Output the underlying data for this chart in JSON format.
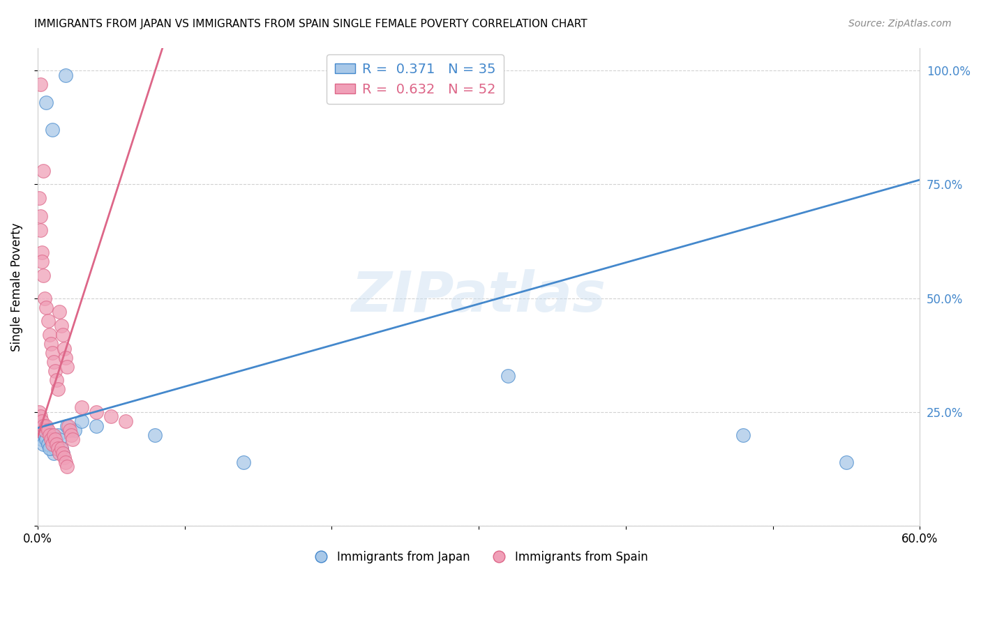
{
  "title": "IMMIGRANTS FROM JAPAN VS IMMIGRANTS FROM SPAIN SINGLE FEMALE POVERTY CORRELATION CHART",
  "source": "Source: ZipAtlas.com",
  "ylabel": "Single Female Poverty",
  "xlim": [
    0.0,
    0.6
  ],
  "ylim": [
    0.0,
    1.05
  ],
  "xtick_vals": [
    0.0,
    0.1,
    0.2,
    0.3,
    0.4,
    0.5,
    0.6
  ],
  "xticklabels": [
    "0.0%",
    "",
    "",
    "",
    "",
    "",
    "60.0%"
  ],
  "ytick_vals": [
    0.0,
    0.25,
    0.5,
    0.75,
    1.0
  ],
  "yticklabels": [
    "",
    "25.0%",
    "50.0%",
    "75.0%",
    "100.0%"
  ],
  "legend_japan": "R =  0.371   N = 35",
  "legend_spain": "R =  0.632   N = 52",
  "color_japan": "#a8c8e8",
  "color_spain": "#f0a0b8",
  "line_color_japan": "#4488cc",
  "line_color_spain": "#dd6688",
  "watermark": "ZIPatlas",
  "japan_line_x": [
    0.0,
    0.6
  ],
  "japan_line_y": [
    0.215,
    0.76
  ],
  "spain_line_x": [
    0.0,
    0.085
  ],
  "spain_line_y": [
    0.195,
    1.05
  ],
  "japan_scatter_x": [
    0.006,
    0.01,
    0.019,
    0.001,
    0.002,
    0.003,
    0.004,
    0.005,
    0.006,
    0.007,
    0.008,
    0.009,
    0.01,
    0.011,
    0.012,
    0.013,
    0.014,
    0.015,
    0.016,
    0.017,
    0.003,
    0.004,
    0.005,
    0.006,
    0.007,
    0.008,
    0.02,
    0.025,
    0.03,
    0.04,
    0.08,
    0.14,
    0.32,
    0.48,
    0.55
  ],
  "japan_scatter_y": [
    0.93,
    0.87,
    0.99,
    0.21,
    0.2,
    0.19,
    0.18,
    0.22,
    0.2,
    0.19,
    0.18,
    0.17,
    0.2,
    0.16,
    0.17,
    0.18,
    0.2,
    0.19,
    0.17,
    0.16,
    0.22,
    0.21,
    0.2,
    0.19,
    0.18,
    0.17,
    0.22,
    0.21,
    0.23,
    0.22,
    0.2,
    0.14,
    0.33,
    0.2,
    0.14
  ],
  "spain_scatter_x": [
    0.002,
    0.004,
    0.002,
    0.003,
    0.001,
    0.002,
    0.003,
    0.004,
    0.005,
    0.006,
    0.007,
    0.008,
    0.009,
    0.01,
    0.011,
    0.012,
    0.013,
    0.014,
    0.015,
    0.016,
    0.017,
    0.018,
    0.019,
    0.02,
    0.001,
    0.002,
    0.003,
    0.004,
    0.005,
    0.006,
    0.007,
    0.008,
    0.009,
    0.01,
    0.011,
    0.012,
    0.013,
    0.014,
    0.015,
    0.016,
    0.017,
    0.018,
    0.019,
    0.02,
    0.021,
    0.022,
    0.023,
    0.024,
    0.03,
    0.04,
    0.05,
    0.06
  ],
  "spain_scatter_y": [
    0.97,
    0.78,
    0.65,
    0.6,
    0.72,
    0.68,
    0.58,
    0.55,
    0.5,
    0.48,
    0.45,
    0.42,
    0.4,
    0.38,
    0.36,
    0.34,
    0.32,
    0.3,
    0.47,
    0.44,
    0.42,
    0.39,
    0.37,
    0.35,
    0.25,
    0.24,
    0.23,
    0.22,
    0.21,
    0.22,
    0.21,
    0.2,
    0.19,
    0.18,
    0.2,
    0.19,
    0.18,
    0.17,
    0.16,
    0.17,
    0.16,
    0.15,
    0.14,
    0.13,
    0.22,
    0.21,
    0.2,
    0.19,
    0.26,
    0.25,
    0.24,
    0.23
  ]
}
